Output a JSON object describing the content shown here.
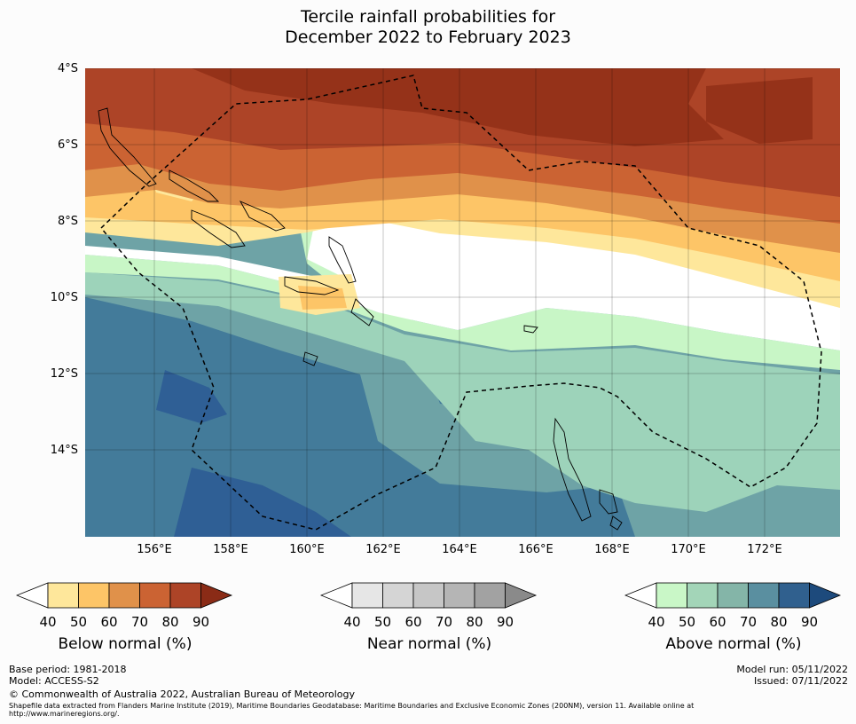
{
  "title": {
    "line1": "Tercile rainfall probabilities for",
    "line2": "December 2022 to February 2023"
  },
  "map": {
    "lat_labels": [
      "4°S",
      "6°S",
      "8°S",
      "10°S",
      "12°S",
      "14°S"
    ],
    "lon_labels": [
      "156°E",
      "158°E",
      "160°E",
      "162°E",
      "164°E",
      "166°E",
      "168°E",
      "170°E",
      "172°E"
    ],
    "lat_range": [
      -16.3,
      -4.0
    ],
    "lon_range": [
      154.2,
      174.0
    ]
  },
  "colorbars": [
    {
      "caption": "Below normal (%)",
      "ticks": [
        "40",
        "50",
        "60",
        "70",
        "80",
        "90"
      ],
      "colors": [
        "#ffffff",
        "#fee79b",
        "#fdc567",
        "#e0914a",
        "#cb6333",
        "#ad4427",
        "#8a2b16"
      ]
    },
    {
      "caption": "Near normal (%)",
      "ticks": [
        "40",
        "50",
        "60",
        "70",
        "80",
        "90"
      ],
      "colors": [
        "#ffffff",
        "#e6e6e6",
        "#d5d5d5",
        "#c6c6c6",
        "#b5b5b5",
        "#a2a2a2",
        "#8a8a8a"
      ]
    },
    {
      "caption": "Above normal (%)",
      "ticks": [
        "40",
        "50",
        "60",
        "70",
        "80",
        "90"
      ],
      "colors": [
        "#ffffff",
        "#c9f7c7",
        "#a3d5b8",
        "#84b5a8",
        "#5a8fa0",
        "#30608e",
        "#1d4a7c"
      ]
    }
  ],
  "footer": {
    "base_period": "Base period: 1981-2018",
    "model": "Model: ACCESS-S2",
    "model_run": "Model run: 05/11/2022",
    "issued": "Issued: 07/11/2022",
    "copyright": "© Commonwealth of Australia 2022, Australian Bureau of Meteorology",
    "shapefile_line1": "Shapefile data extracted from Flanders Marine Institute (2019), Maritime Boundaries Geodatabase: Maritime Boundaries and Exclusive Economic Zones (200NM), version 11. Available online at",
    "shapefile_line2": "http://www.marineregions.org/."
  }
}
